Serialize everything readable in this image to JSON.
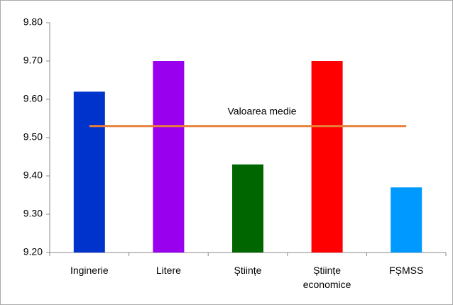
{
  "chart_data": {
    "type": "bar",
    "categories": [
      "Inginerie",
      "Litere",
      "Științe",
      "Științe economice",
      "FȘMSS"
    ],
    "values": [
      9.62,
      9.7,
      9.43,
      9.7,
      9.37
    ],
    "colors": [
      "#0033cc",
      "#9900ee",
      "#006600",
      "#ff0000",
      "#0099ff"
    ],
    "ylim": [
      9.2,
      9.8
    ],
    "yticks": [
      {
        "value": 9.2,
        "label": "9.20"
      },
      {
        "value": 9.3,
        "label": "9.30"
      },
      {
        "value": 9.4,
        "label": "9.40"
      },
      {
        "value": 9.5,
        "label": "9.50"
      },
      {
        "value": 9.6,
        "label": "9.60"
      },
      {
        "value": 9.7,
        "label": "9.70"
      },
      {
        "value": 9.8,
        "label": "9.80"
      }
    ],
    "reference_line": {
      "label": "Valoarea medie",
      "value": 9.53,
      "color": "#e8803a"
    },
    "grid": false
  }
}
